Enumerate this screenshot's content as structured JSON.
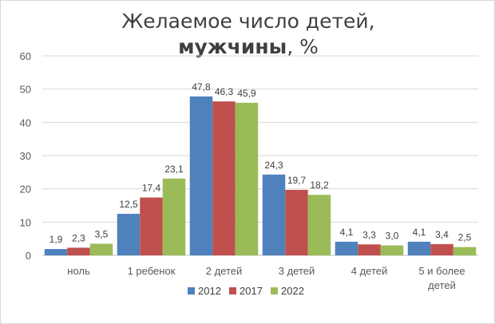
{
  "chart_data": {
    "type": "bar",
    "title_line1": "Желаемое число детей,",
    "title_bold": "мужчины",
    "title_rest": ", %",
    "categories": [
      [
        "ноль"
      ],
      [
        "1 ребенок"
      ],
      [
        "2 детей"
      ],
      [
        "3 детей"
      ],
      [
        "4 детей"
      ],
      [
        "5 и более",
        "детей"
      ]
    ],
    "series": [
      {
        "name": "2012",
        "color": "#4f81bd",
        "values": [
          1.9,
          12.5,
          47.8,
          24.3,
          4.1,
          4.1
        ],
        "labels": [
          "1,9",
          "12,5",
          "47,8",
          "24,3",
          "4,1",
          "4,1"
        ]
      },
      {
        "name": "2017",
        "color": "#c0504d",
        "values": [
          2.3,
          17.4,
          46.3,
          19.7,
          3.3,
          3.4
        ],
        "labels": [
          "2,3",
          "17,4",
          "46,3",
          "19,7",
          "3,3",
          "3,4"
        ]
      },
      {
        "name": "2022",
        "color": "#9bbb59",
        "values": [
          3.5,
          23.1,
          45.9,
          18.2,
          3.0,
          2.5
        ],
        "labels": [
          "3,5",
          "23,1",
          "45,9",
          "18,2",
          "3,0",
          "2,5"
        ]
      }
    ],
    "ylim": [
      0,
      60
    ],
    "yticks": [
      0,
      10,
      20,
      30,
      40,
      50,
      60
    ],
    "grid": true,
    "legend_position": "bottom"
  }
}
